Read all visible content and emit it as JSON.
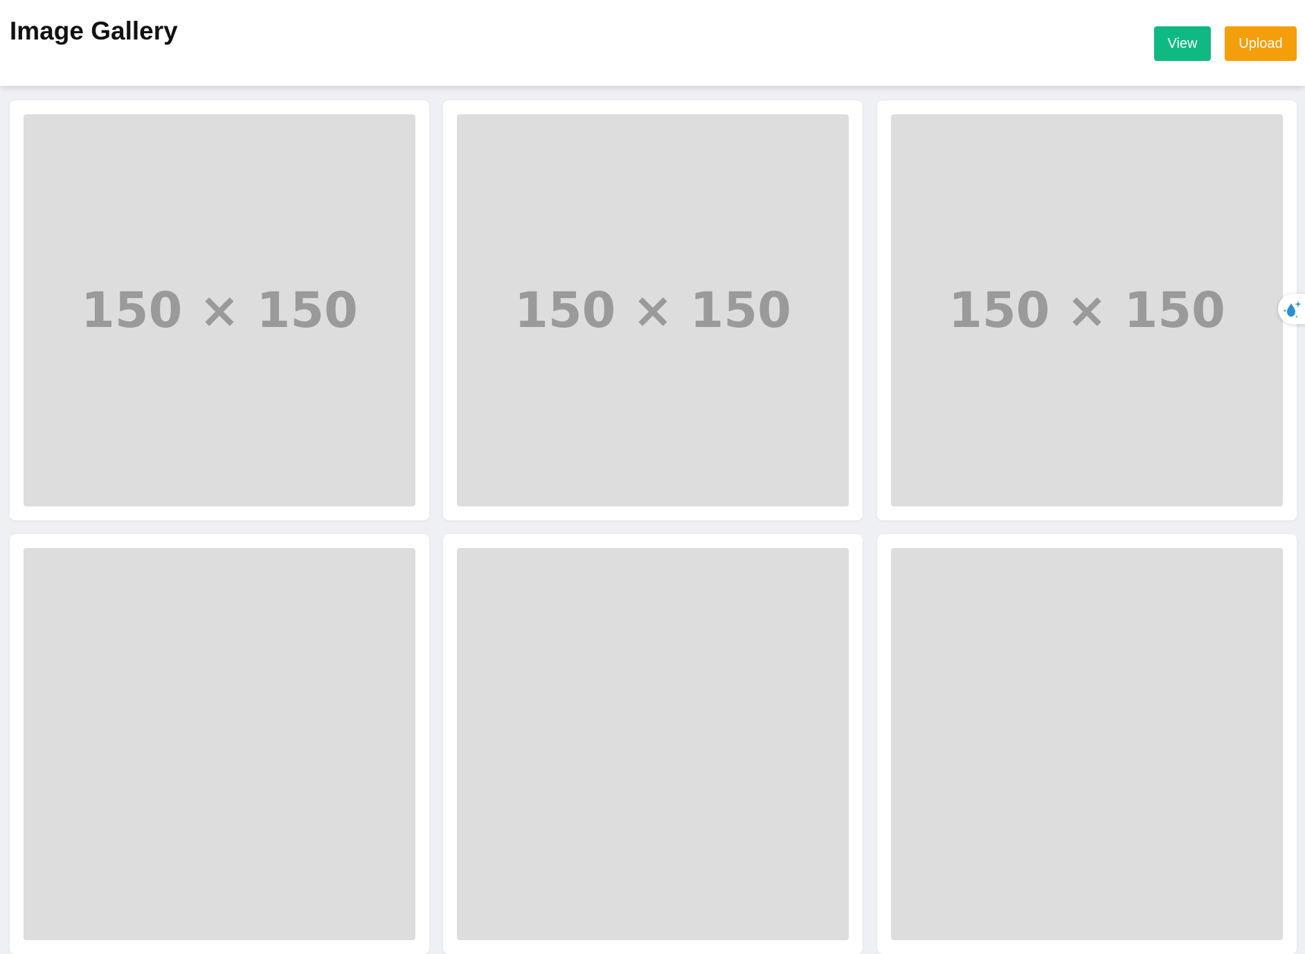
{
  "header": {
    "title": "Image Gallery",
    "buttons": {
      "view_label": "View",
      "upload_label": "Upload"
    }
  },
  "colors": {
    "view_button": "#10b981",
    "upload_button": "#f59e0b",
    "placeholder_bg": "#dddddd",
    "placeholder_text": "#9a9a9a"
  },
  "gallery": {
    "images": [
      {
        "label": "150 × 150"
      },
      {
        "label": "150 × 150"
      },
      {
        "label": "150 × 150"
      },
      {
        "label": ""
      },
      {
        "label": ""
      },
      {
        "label": ""
      }
    ]
  },
  "floating_widget": {
    "icon": "water-drop-sparkle-icon"
  }
}
